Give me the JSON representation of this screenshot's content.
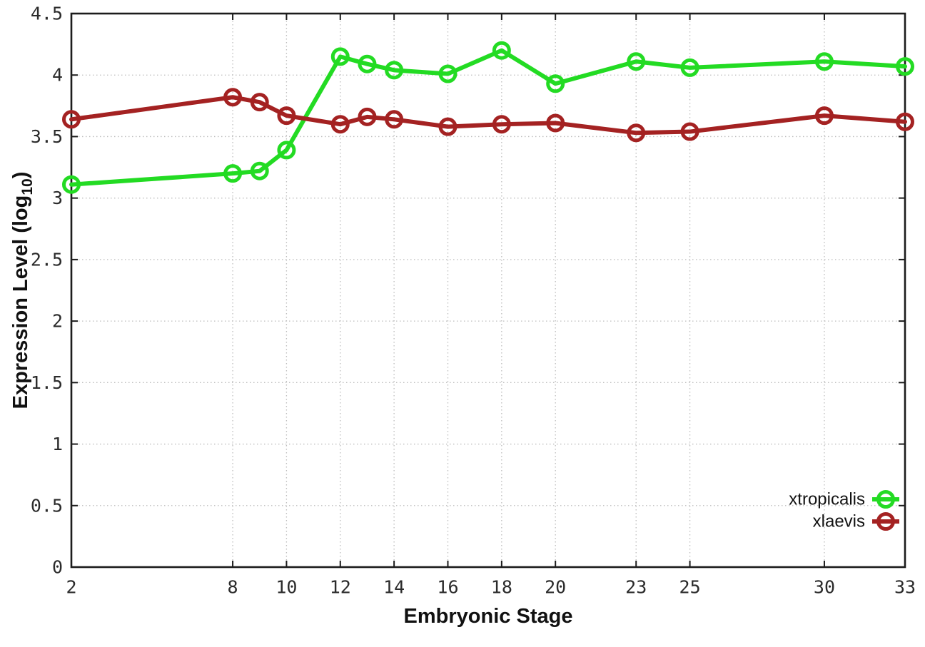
{
  "chart_data": {
    "type": "line",
    "title": "",
    "xlabel": "Embryonic Stage",
    "ylabel": {
      "text": "Expression Level (log",
      "sub": "10",
      "suffix": ")"
    },
    "x": [
      2,
      8,
      9,
      10,
      12,
      13,
      14,
      16,
      18,
      20,
      23,
      25,
      30,
      33
    ],
    "xticks": [
      2,
      8,
      10,
      12,
      14,
      16,
      18,
      20,
      23,
      25,
      30,
      33
    ],
    "xlim": [
      2,
      33
    ],
    "ytick_labels": [
      "0",
      "0.5",
      "1",
      "1.5",
      "2",
      "2.5",
      "3",
      "3.5",
      "4",
      "4.5"
    ],
    "ytick_values": [
      0,
      0.5,
      1,
      1.5,
      2,
      2.5,
      3,
      3.5,
      4,
      4.5
    ],
    "ylim": [
      0,
      4.5
    ],
    "grid": true,
    "legend_position": "bottom-right",
    "series": [
      {
        "name": "xtropicalis",
        "color": "#23db23",
        "values": [
          3.11,
          3.2,
          3.22,
          3.39,
          4.15,
          4.09,
          4.04,
          4.01,
          4.2,
          3.93,
          4.11,
          4.06,
          4.11,
          4.07
        ]
      },
      {
        "name": "xlaevis",
        "color": "#a42222",
        "values": [
          3.64,
          3.82,
          3.78,
          3.67,
          3.6,
          3.66,
          3.64,
          3.58,
          3.6,
          3.61,
          3.53,
          3.54,
          3.67,
          3.62
        ]
      }
    ]
  }
}
